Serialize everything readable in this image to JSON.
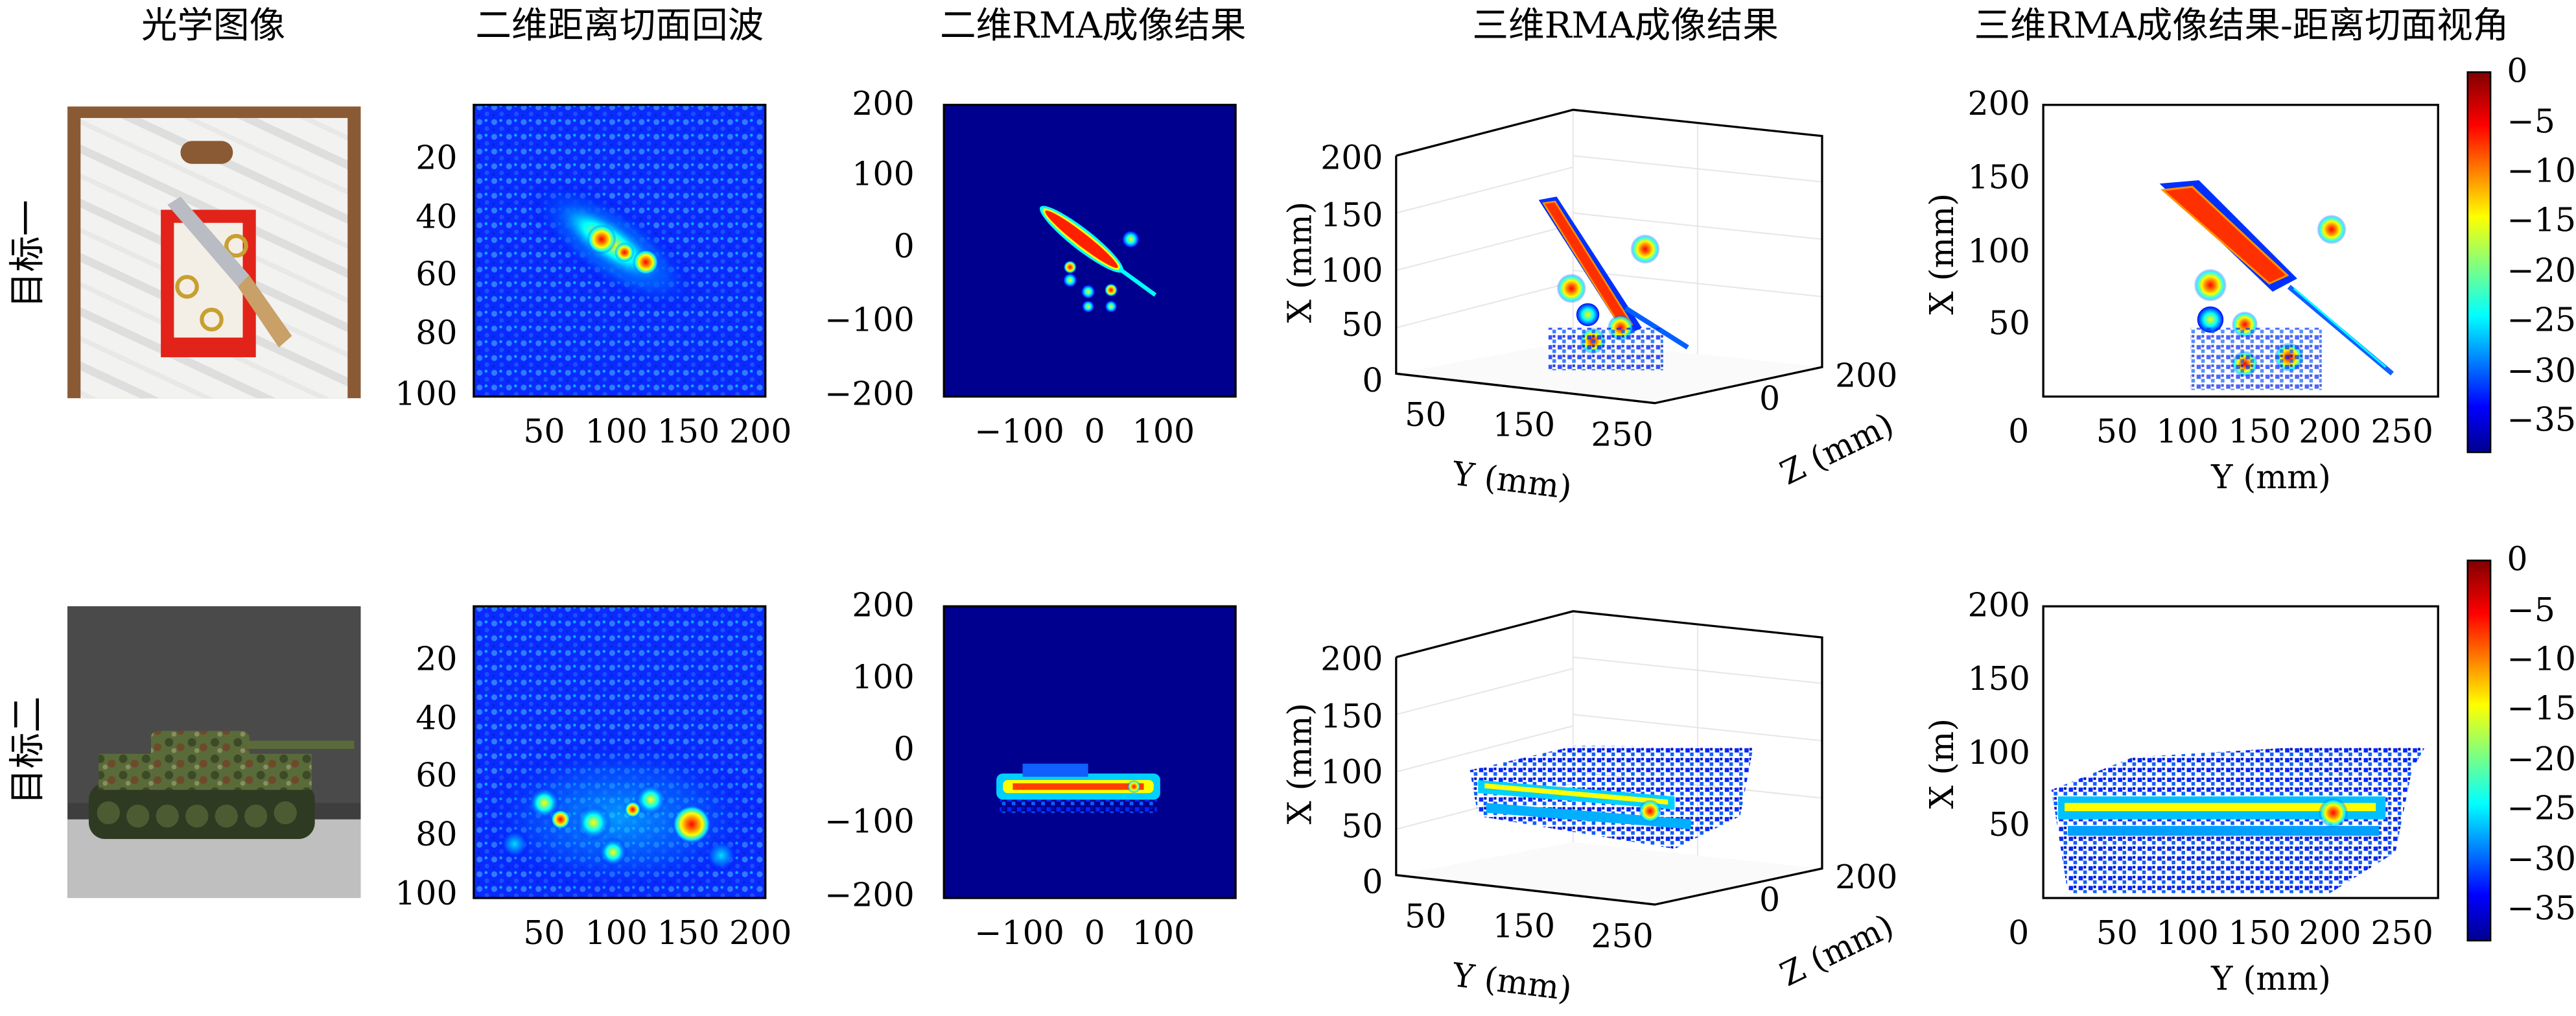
{
  "colors": {
    "frame": "#000000",
    "background": "#ffffff",
    "image_background": "#00008f",
    "grid": "#e6e6e6"
  },
  "columns": [
    "光学图像",
    "二维距离切面回波",
    "二维RMA成像结果",
    "三维RMA成像结果",
    "三维RMA成像结果-距离切面视角"
  ],
  "rows": [
    {
      "label": "目标一",
      "photo": "knife and metal hooks on a printed card inside a white plastic bag",
      "y3_label": "X (mm)",
      "ysec_label": "X (mm)"
    },
    {
      "label": "目标二",
      "photo": "camouflage toy tank model on a table",
      "y3_label": "X (mm)",
      "ysec_label": "X (m)"
    }
  ],
  "chart_data": [
    {
      "type": "heatmap",
      "row": 1,
      "column": "二维距离切面回波",
      "x_ticks": [
        "50",
        "100",
        "150",
        "200"
      ],
      "y_ticks": [
        "20",
        "40",
        "60",
        "80",
        "100"
      ],
      "xlim": [
        0,
        200
      ],
      "ylim": [
        100,
        0
      ]
    },
    {
      "type": "heatmap",
      "row": 1,
      "column": "二维RMA成像结果",
      "x_ticks": [
        "−100",
        "0",
        "100"
      ],
      "y_ticks": [
        "200",
        "100",
        "0",
        "−100",
        "−200"
      ],
      "xlim": [
        -200,
        200
      ],
      "ylim": [
        -200,
        200
      ]
    },
    {
      "type": "scatter",
      "row": 1,
      "column": "三维RMA成像结果",
      "xlabel": "Y (mm)",
      "ylabel": "X (mm)",
      "zlabel": "Z (mm)",
      "x_ticks": [
        "50",
        "150",
        "250"
      ],
      "y_ticks": [
        "0",
        "50",
        "100",
        "150",
        "200"
      ],
      "z_ticks": [
        "0",
        "200"
      ]
    },
    {
      "type": "scatter",
      "row": 1,
      "column": "三维RMA成像结果-距离切面视角",
      "xlabel": "Y (mm)",
      "ylabel": "X (mm)",
      "x_ticks": [
        "0",
        "50",
        "100",
        "150",
        "200",
        "250"
      ],
      "y_ticks": [
        "0",
        "50",
        "100",
        "150",
        "200"
      ],
      "xlim": [
        0,
        280
      ],
      "ylim": [
        0,
        200
      ]
    },
    {
      "type": "heatmap",
      "row": 2,
      "column": "二维距离切面回波",
      "x_ticks": [
        "50",
        "100",
        "150",
        "200"
      ],
      "y_ticks": [
        "20",
        "40",
        "60",
        "80",
        "100"
      ],
      "xlim": [
        0,
        200
      ],
      "ylim": [
        100,
        0
      ]
    },
    {
      "type": "heatmap",
      "row": 2,
      "column": "二维RMA成像结果",
      "x_ticks": [
        "−100",
        "0",
        "100"
      ],
      "y_ticks": [
        "200",
        "100",
        "0",
        "−100",
        "−200"
      ],
      "xlim": [
        -200,
        200
      ],
      "ylim": [
        -200,
        200
      ]
    },
    {
      "type": "scatter",
      "row": 2,
      "column": "三维RMA成像结果",
      "xlabel": "Y (mm)",
      "ylabel": "X (mm)",
      "zlabel": "Z (mm)",
      "x_ticks": [
        "50",
        "150",
        "250"
      ],
      "y_ticks": [
        "0",
        "50",
        "100",
        "150",
        "200"
      ],
      "z_ticks": [
        "0",
        "200"
      ]
    },
    {
      "type": "scatter",
      "row": 2,
      "column": "三维RMA成像结果-距离切面视角",
      "xlabel": "Y (mm)",
      "ylabel": "X (m)",
      "x_ticks": [
        "0",
        "50",
        "100",
        "150",
        "200",
        "250"
      ],
      "y_ticks": [
        "0",
        "50",
        "100",
        "150",
        "200"
      ],
      "xlim": [
        0,
        280
      ],
      "ylim": [
        0,
        200
      ]
    }
  ],
  "colorbar": {
    "ticks": [
      "0",
      "−5",
      "−10",
      "−15",
      "−20",
      "−25",
      "−30",
      "−35"
    ],
    "range": [
      -38,
      0
    ],
    "colormap": "jet"
  }
}
